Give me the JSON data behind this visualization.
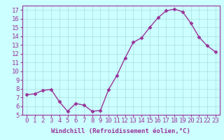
{
  "x": [
    0,
    1,
    2,
    3,
    4,
    5,
    6,
    7,
    8,
    9,
    10,
    11,
    12,
    13,
    14,
    15,
    16,
    17,
    18,
    19,
    20,
    21,
    22,
    23
  ],
  "y": [
    7.3,
    7.4,
    7.8,
    7.9,
    6.5,
    5.4,
    6.3,
    6.1,
    5.4,
    5.5,
    7.9,
    9.5,
    11.5,
    13.3,
    13.8,
    15.0,
    16.1,
    16.9,
    17.1,
    16.8,
    15.5,
    13.9,
    12.9,
    12.2
  ],
  "line_color": "#993399",
  "marker": "D",
  "marker_size": 2.5,
  "linewidth": 1.0,
  "xlabel": "Windchill (Refroidissement éolien,°C)",
  "ylim": [
    5,
    17.5
  ],
  "xlim": [
    -0.5,
    23.5
  ],
  "yticks": [
    5,
    6,
    7,
    8,
    9,
    10,
    11,
    12,
    13,
    14,
    15,
    16,
    17
  ],
  "xticks": [
    0,
    1,
    2,
    3,
    4,
    5,
    6,
    7,
    8,
    9,
    10,
    11,
    12,
    13,
    14,
    15,
    16,
    17,
    18,
    19,
    20,
    21,
    22,
    23
  ],
  "background_color": "#ccffff",
  "grid_color": "#aadddd",
  "tick_label_color": "#993399",
  "xlabel_color": "#993399",
  "xlabel_fontsize": 6.5,
  "tick_fontsize": 6.5
}
